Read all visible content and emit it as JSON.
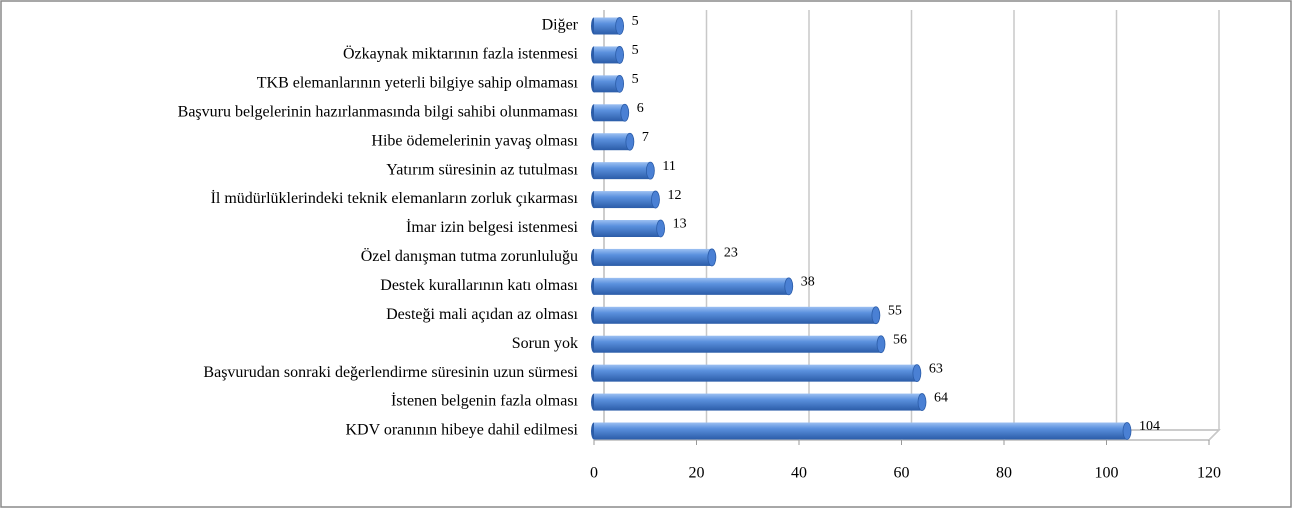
{
  "chart_data": {
    "type": "bar",
    "orientation": "horizontal",
    "categories": [
      "Diğer",
      "Özkaynak miktarının fazla istenmesi",
      "TKB elemanlarının yeterli bilgiye sahip olmaması",
      "Başvuru belgelerinin hazırlanmasında bilgi sahibi olunmaması",
      "Hibe ödemelerinin yavaş olması",
      "Yatırım süresinin az tutulması",
      "İl müdürlüklerindeki teknik elemanların zorluk çıkarması",
      "İmar izin belgesi istenmesi",
      "Özel danışman tutma zorunluluğu",
      "Destek kurallarının katı olması",
      "Desteği mali açıdan az olması",
      "Sorun yok",
      "Başvurudan sonraki değerlendirme süresinin uzun sürmesi",
      "İstenen belgenin fazla olması",
      "KDV oranının hibeye dahil edilmesi"
    ],
    "values": [
      5,
      5,
      5,
      6,
      7,
      11,
      12,
      13,
      23,
      38,
      55,
      56,
      63,
      64,
      104
    ],
    "color": "#4a80d4",
    "xlim": [
      0,
      120
    ],
    "xticks": [
      0,
      20,
      40,
      60,
      80,
      100,
      120
    ],
    "grid": true
  }
}
